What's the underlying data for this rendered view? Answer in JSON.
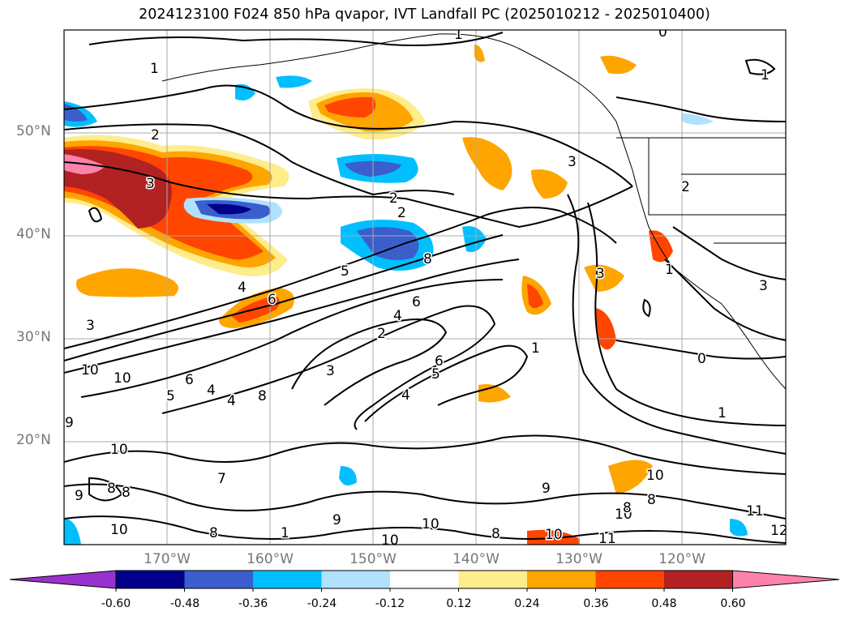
{
  "title": "2024123100 F024 850 hPa qvapor, IVT Landfall PC (2025010212 - 2025010400)",
  "map": {
    "lat_labels": [
      "50°N",
      "40°N",
      "30°N",
      "20°N"
    ],
    "lon_labels": [
      "170°W",
      "160°W",
      "150°W",
      "140°W",
      "130°W",
      "120°W"
    ],
    "contour_labels": [
      "1",
      "1",
      "0",
      "1",
      "2",
      "2",
      "3",
      "2",
      "3",
      "2",
      "8",
      "5",
      "4",
      "6",
      "4",
      "6",
      "3",
      "2",
      "3",
      "4",
      "5",
      "6",
      "4",
      "1",
      "3",
      "1",
      "0",
      "3",
      "1",
      "10",
      "10",
      "9",
      "6",
      "5",
      "4",
      "8",
      "10",
      "8",
      "9",
      "8",
      "10",
      "10",
      "10",
      "9",
      "11",
      "12",
      "10",
      "10",
      "11",
      "8",
      "8",
      "7",
      "8",
      "9",
      "10",
      "8",
      "1"
    ]
  },
  "colorbar": {
    "ticks": [
      "-0.60",
      "-0.48",
      "-0.36",
      "-0.24",
      "-0.12",
      "0.12",
      "0.24",
      "0.36",
      "0.48",
      "0.60"
    ],
    "colors": [
      "#9932cc",
      "#00008b",
      "#3a5fcd",
      "#00bfff",
      "#b0e2ff",
      "#ffffff",
      "#ffec8b",
      "#ffa500",
      "#ff4500",
      "#b22222",
      "#ff82ab"
    ]
  }
}
